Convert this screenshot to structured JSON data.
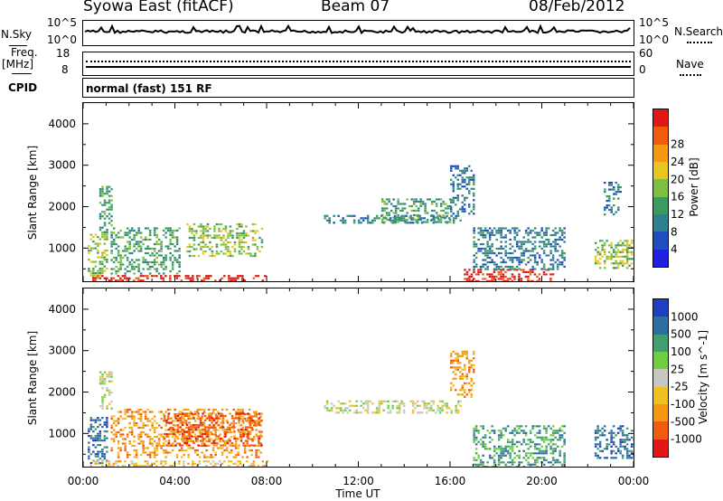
{
  "header": {
    "station": "Syowa East (fitACF)",
    "beam": "Beam 07",
    "date": "08/Feb/2012"
  },
  "strips": {
    "nsky_label": "N.Sky",
    "nsky_ticks": [
      "10^5",
      "10^0"
    ],
    "nsearch_label": "N.Search",
    "nsearch_ticks": [
      "10^5",
      "10^0"
    ],
    "freq_label_line1": "Freq.",
    "freq_label_line2": "[MHz]",
    "freq_ticks": [
      "18",
      "8"
    ],
    "nave_label": "Nave",
    "nave_ticks": [
      "60",
      "0"
    ],
    "cpid_label": "CPID",
    "cpid_text": "normal (fast) 151 RF"
  },
  "chart_data": [
    {
      "type": "heatmap",
      "title": "",
      "xlabel": "Time UT",
      "ylabel": "Slant Range [km]",
      "x_ticks": [
        "00:00",
        "04:00",
        "08:00",
        "12:00",
        "16:00",
        "20:00",
        "00:00"
      ],
      "xlim": [
        0,
        24
      ],
      "ylim": [
        200,
        4500
      ],
      "y_ticks": [
        1000,
        2000,
        3000,
        4000
      ],
      "colorbar": {
        "label": "Power [dB]",
        "ticks": [
          4,
          8,
          12,
          16,
          20,
          24,
          28
        ],
        "colors": [
          "#1f20e0",
          "#1f4fbf",
          "#2f7f8f",
          "#3a9a60",
          "#7fbf3f",
          "#e8c51f",
          "#f39a10",
          "#f25a10",
          "#e21818"
        ]
      },
      "blocks": [
        {
          "t0": 0.2,
          "t1": 1.0,
          "r0": 300,
          "r1": 1400,
          "level": 4
        },
        {
          "t0": 0.7,
          "t1": 1.2,
          "r0": 1400,
          "r1": 2500,
          "level": 3
        },
        {
          "t0": 0.3,
          "t1": 8.0,
          "r0": 200,
          "r1": 350,
          "level": 8
        },
        {
          "t0": 1.2,
          "t1": 4.2,
          "r0": 400,
          "r1": 1500,
          "level": 3
        },
        {
          "t0": 4.5,
          "t1": 7.8,
          "r0": 800,
          "r1": 1600,
          "level": 4
        },
        {
          "t0": 10.5,
          "t1": 16.5,
          "r0": 1600,
          "r1": 1800,
          "level": 2
        },
        {
          "t0": 13.0,
          "t1": 16.0,
          "r0": 1600,
          "r1": 2200,
          "level": 3
        },
        {
          "t0": 16.0,
          "t1": 17.0,
          "r0": 1800,
          "r1": 3000,
          "level": 2
        },
        {
          "t0": 16.5,
          "t1": 20.5,
          "r0": 200,
          "r1": 500,
          "level": 8
        },
        {
          "t0": 17.0,
          "t1": 21.0,
          "r0": 500,
          "r1": 1500,
          "level": 2
        },
        {
          "t0": 22.3,
          "t1": 24.0,
          "r0": 500,
          "r1": 1200,
          "level": 4
        },
        {
          "t0": 22.7,
          "t1": 23.4,
          "r0": 1800,
          "r1": 2600,
          "level": 2
        }
      ]
    },
    {
      "type": "heatmap",
      "title": "",
      "xlabel": "Time UT",
      "ylabel": "Slant Range [km]",
      "x_ticks": [
        "00:00",
        "04:00",
        "08:00",
        "12:00",
        "16:00",
        "20:00",
        "00:00"
      ],
      "xlim": [
        0,
        24
      ],
      "ylim": [
        200,
        4500
      ],
      "y_ticks": [
        1000,
        2000,
        3000,
        4000
      ],
      "colorbar": {
        "label": "Velocity [m s^-1]",
        "ticks": [
          "1000",
          "500",
          "100",
          "25",
          "-25",
          "-100",
          "-500",
          "-1000"
        ],
        "colors": [
          "#1f3fbf",
          "#2f6f9f",
          "#3f9f6f",
          "#6fcf3f",
          "#c8c8c0",
          "#f0c020",
          "#f39a10",
          "#f25a10",
          "#e21818"
        ]
      },
      "blocks": [
        {
          "t0": 0.2,
          "t1": 1.0,
          "r0": 300,
          "r1": 1400,
          "level": 1
        },
        {
          "t0": 0.7,
          "t1": 1.2,
          "r0": 1600,
          "r1": 2500,
          "level": 4
        },
        {
          "t0": 1.2,
          "t1": 7.8,
          "r0": 400,
          "r1": 1600,
          "level": 6
        },
        {
          "t0": 3.5,
          "t1": 7.8,
          "r0": 700,
          "r1": 1500,
          "level": 7
        },
        {
          "t0": 0.3,
          "t1": 8.0,
          "r0": 200,
          "r1": 350,
          "level": 5
        },
        {
          "t0": 10.5,
          "t1": 16.5,
          "r0": 1500,
          "r1": 1800,
          "level": 4
        },
        {
          "t0": 16.0,
          "t1": 17.0,
          "r0": 1900,
          "r1": 3000,
          "level": 6
        },
        {
          "t0": 17.0,
          "t1": 21.0,
          "r0": 200,
          "r1": 1200,
          "level": 2
        },
        {
          "t0": 22.3,
          "t1": 24.0,
          "r0": 400,
          "r1": 1200,
          "level": 1
        }
      ]
    }
  ]
}
